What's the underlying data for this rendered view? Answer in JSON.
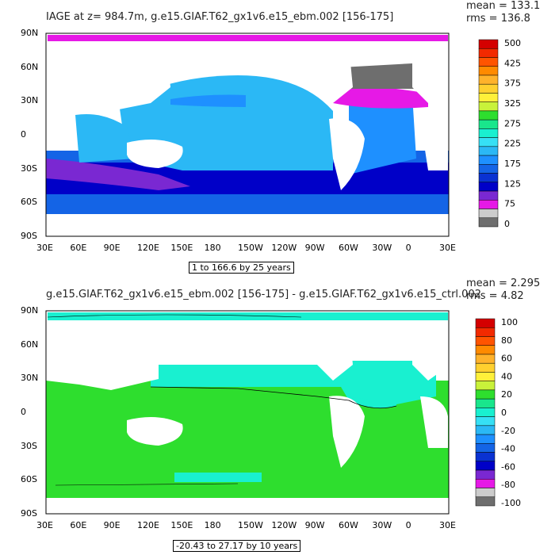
{
  "panels": [
    {
      "title": "IAGE at z= 984.7m, g.e15.GIAF.T62_gx1v6.e15_ebm.002 [156-175]",
      "mean": "mean = 133.1",
      "rms": "rms = 136.8",
      "contour_info": "1 to 166.6 by 25 years",
      "legend_labels": [
        "500",
        "425",
        "375",
        "325",
        "275",
        "225",
        "175",
        "125",
        "75",
        "0"
      ],
      "legend_colors": [
        "#d40000",
        "#f22a00",
        "#ff5400",
        "#ff8a00",
        "#ffb22b",
        "#ffd02f",
        "#fff03a",
        "#c9f23a",
        "#2ede2e",
        "#19e68c",
        "#19f0d0",
        "#36e0f5",
        "#2bb8f5",
        "#1e90ff",
        "#1464e6",
        "#0a32d2",
        "#0000c8",
        "#7a28d2",
        "#e619e6",
        "#cccccc",
        "#6e6e6e"
      ]
    },
    {
      "title": "g.e15.GIAF.T62_gx1v6.e15_ebm.002 [156-175] - g.e15.GIAF.T62_gx1v6.e15_ctrl.002",
      "mean": "mean = 2.295",
      "rms": "rms = 4.82",
      "contour_info": "-20.43 to 27.17 by 10 years",
      "legend_labels": [
        "100",
        "80",
        "60",
        "40",
        "20",
        "0",
        "-20",
        "-40",
        "-60",
        "-80",
        "-100"
      ],
      "legend_colors": [
        "#d40000",
        "#f22a00",
        "#ff5400",
        "#ff8a00",
        "#ffb22b",
        "#ffd02f",
        "#fff03a",
        "#c9f23a",
        "#2ede2e",
        "#19e68c",
        "#19f0d0",
        "#36e0f5",
        "#2bb8f5",
        "#1e90ff",
        "#1464e6",
        "#0a32d2",
        "#0000c8",
        "#7a28d2",
        "#e619e6",
        "#cccccc",
        "#6e6e6e"
      ]
    }
  ],
  "lat_ticks": [
    "90N",
    "60N",
    "30N",
    "0",
    "30S",
    "60S",
    "90S"
  ],
  "lon_ticks": [
    "30E",
    "60E",
    "90E",
    "120E",
    "150E",
    "180",
    "150W",
    "120W",
    "90W",
    "60W",
    "30W",
    "0",
    "30E"
  ],
  "colors": {
    "p1_pacific": "#2bb8f5",
    "p1_pacific_deep": "#1e90ff",
    "p1_southern": "#0000c8",
    "p1_southern2": "#1464e6",
    "p1_purple": "#7a28d2",
    "p1_magenta": "#e619e6",
    "p1_gray": "#6e6e6e",
    "p2_green": "#2ede2e",
    "p2_cyan": "#19f0d0",
    "land": "#ffffff"
  }
}
